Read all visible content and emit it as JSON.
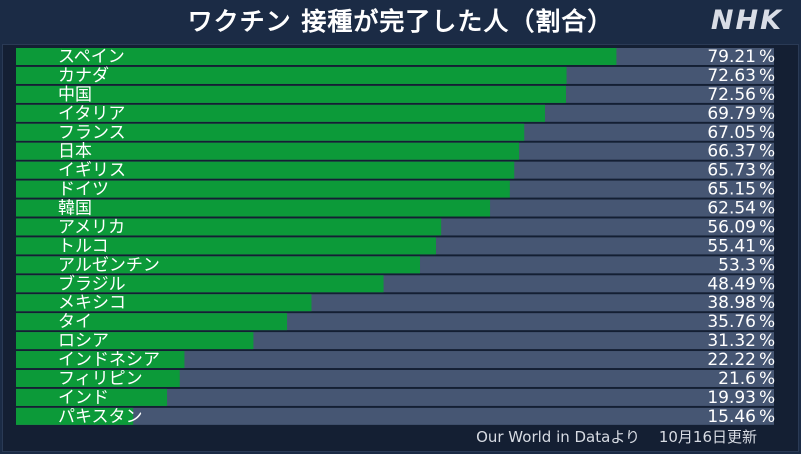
{
  "header": {
    "title": "ワクチン 接種が完了した人（割合）",
    "logo": "NHK"
  },
  "footer": {
    "source": "Our World in Dataより",
    "updated": "10月16日更新"
  },
  "colors": {
    "background": "#1b2b45",
    "bar_fill": "#0c9a39",
    "bar_track": "#465673"
  },
  "chart_data": {
    "type": "bar",
    "orientation": "horizontal",
    "categories": [
      "スペイン",
      "カナダ",
      "中国",
      "イタリア",
      "フランス",
      "日本",
      "イギリス",
      "ドイツ",
      "韓国",
      "アメリカ",
      "トルコ",
      "アルゼンチン",
      "ブラジル",
      "メキシコ",
      "タイ",
      "ロシア",
      "インドネシア",
      "フィリピン",
      "インド",
      "パキスタン"
    ],
    "values": [
      79.21,
      72.63,
      72.56,
      69.79,
      67.05,
      66.37,
      65.73,
      65.15,
      62.54,
      56.09,
      55.41,
      53.3,
      48.49,
      38.98,
      35.76,
      31.32,
      22.22,
      21.6,
      19.93,
      15.46
    ],
    "value_labels": [
      "79.21",
      "72.63",
      "72.56",
      "69.79",
      "67.05",
      "66.37",
      "65.73",
      "65.15",
      "62.54",
      "56.09",
      "55.41",
      "53.3",
      "48.49",
      "38.98",
      "35.76",
      "31.32",
      "22.22",
      "21.6",
      "19.93",
      "15.46"
    ],
    "unit": "%",
    "xlim": [
      0,
      100
    ],
    "title": "ワクチン 接種が完了した人（割合）",
    "xlabel": "",
    "ylabel": "",
    "grid": false,
    "legend": "none"
  }
}
